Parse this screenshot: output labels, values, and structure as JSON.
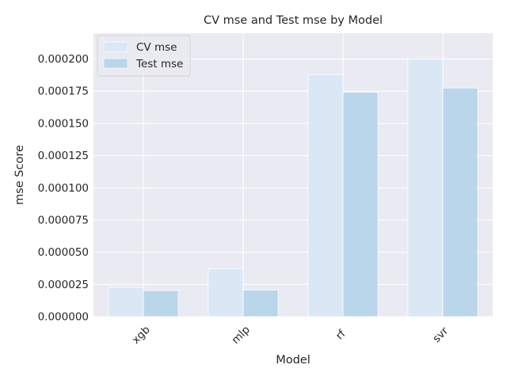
{
  "chart_data": {
    "type": "bar",
    "title": "CV mse and Test mse by Model",
    "xlabel": "Model",
    "ylabel": "mse Score",
    "categories": [
      "xgb",
      "mlp",
      "rf",
      "svr"
    ],
    "series": [
      {
        "name": "CV mse",
        "values": [
          2.28e-05,
          3.73e-05,
          0.0001878,
          0.0002
        ],
        "color": "#dae8f6"
      },
      {
        "name": "Test mse",
        "values": [
          2.03e-05,
          2.07e-05,
          0.0001743,
          0.0001775
        ],
        "color": "#bad6eb"
      }
    ],
    "ylim": [
      0,
      0.00022
    ],
    "yticks": [
      "0.000000",
      "0.000025",
      "0.000050",
      "0.000075",
      "0.000100",
      "0.000125",
      "0.000150",
      "0.000175",
      "0.000200"
    ],
    "ytick_values": [
      0,
      2.5e-05,
      5e-05,
      7.5e-05,
      0.0001,
      0.000125,
      0.00015,
      0.000175,
      0.0002
    ],
    "grid": true,
    "legend_position": "top-left",
    "background": "#eaeaf2"
  }
}
